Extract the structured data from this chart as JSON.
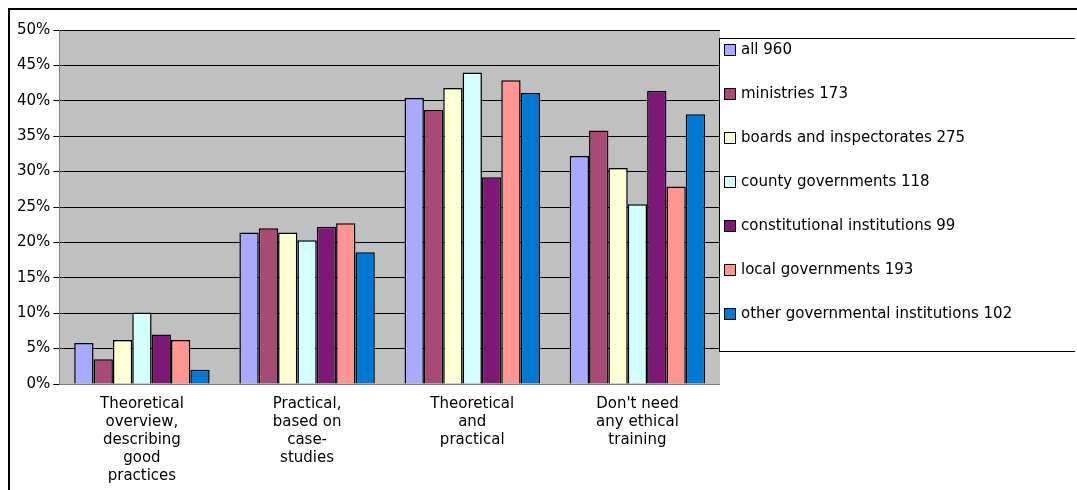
{
  "chart_data": {
    "type": "bar",
    "categories": [
      "Theoretical overview, describing good practices",
      "Practical, based on case-studies",
      "Theoretical and practical",
      "Don't need any ethical training"
    ],
    "series": [
      {
        "name": "all 960",
        "color": "#a9a9ff",
        "values": [
          5.8,
          21.4,
          40.4,
          32.2
        ]
      },
      {
        "name": "ministries 173",
        "color": "#a94a76",
        "values": [
          3.5,
          22.0,
          38.7,
          35.8
        ]
      },
      {
        "name": "boards and inspectorates 275",
        "color": "#ffffd4",
        "values": [
          6.2,
          21.4,
          41.8,
          30.5
        ]
      },
      {
        "name": "county governments 118",
        "color": "#d4ffff",
        "values": [
          10.1,
          20.3,
          44.0,
          25.4
        ]
      },
      {
        "name": "constitutional institutions 99",
        "color": "#7d1877",
        "values": [
          7.0,
          22.2,
          29.2,
          41.4
        ]
      },
      {
        "name": "local governments 193",
        "color": "#ff9590",
        "values": [
          6.2,
          22.7,
          42.9,
          27.9
        ]
      },
      {
        "name": "other governmental institutions 102",
        "color": "#0079d4",
        "values": [
          2.0,
          18.6,
          41.1,
          38.1
        ]
      }
    ],
    "ylim": [
      0,
      50
    ],
    "yticks": [
      {
        "value": 0,
        "label": "0%"
      },
      {
        "value": 5,
        "label": "5%"
      },
      {
        "value": 10,
        "label": "10%"
      },
      {
        "value": 15,
        "label": "15%"
      },
      {
        "value": 20,
        "label": "20%"
      },
      {
        "value": 25,
        "label": "25%"
      },
      {
        "value": 30,
        "label": "30%"
      },
      {
        "value": 35,
        "label": "35%"
      },
      {
        "value": 40,
        "label": "40%"
      },
      {
        "value": 45,
        "label": "45%"
      },
      {
        "value": 50,
        "label": "50%"
      }
    ],
    "grid": "y",
    "legend": "right"
  }
}
